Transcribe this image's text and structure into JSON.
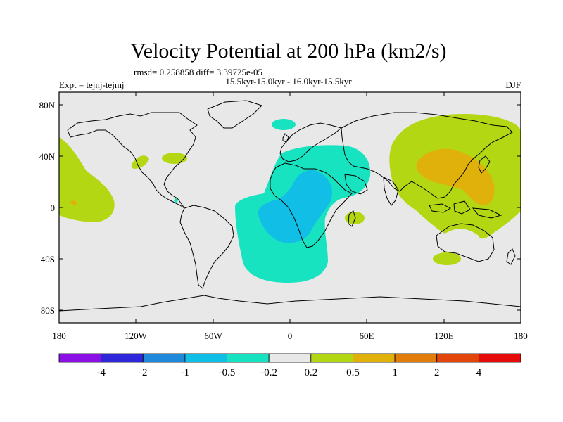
{
  "title": "Velocity Potential at 200 hPa (km2/s)",
  "stats_line": "rmsd= 0.258858 diff= 3.39725e-05",
  "period_line": "15.5kyr-15.0kyr - 16.0kyr-15.5kyr",
  "experiment": "Expt = tejnj-tejmj",
  "season": "DJF",
  "lat_ticks": [
    "80N",
    "40N",
    "0",
    "40S",
    "80S"
  ],
  "lon_ticks": [
    "180",
    "120W",
    "60W",
    "0",
    "60E",
    "120E",
    "180"
  ],
  "colorbar": {
    "labels": [
      "-4",
      "-2",
      "-1",
      "-0.5",
      "-0.2",
      "0.2",
      "0.5",
      "1",
      "2",
      "4"
    ],
    "colors": [
      "#8a10e6",
      "#2e26d8",
      "#1f8ad9",
      "#11bfe6",
      "#18e3c1",
      "#e8e8e8",
      "#b3d712",
      "#e0b10a",
      "#e27c0b",
      "#e3460a",
      "#e50b0b"
    ]
  },
  "colors": {
    "ocean_bg": "#e8e8e8",
    "coast": "#000000",
    "pos_02": "#b3d712",
    "pos_05": "#e0b10a",
    "neg_02": "#18e3c1",
    "neg_05": "#11bfe6"
  }
}
